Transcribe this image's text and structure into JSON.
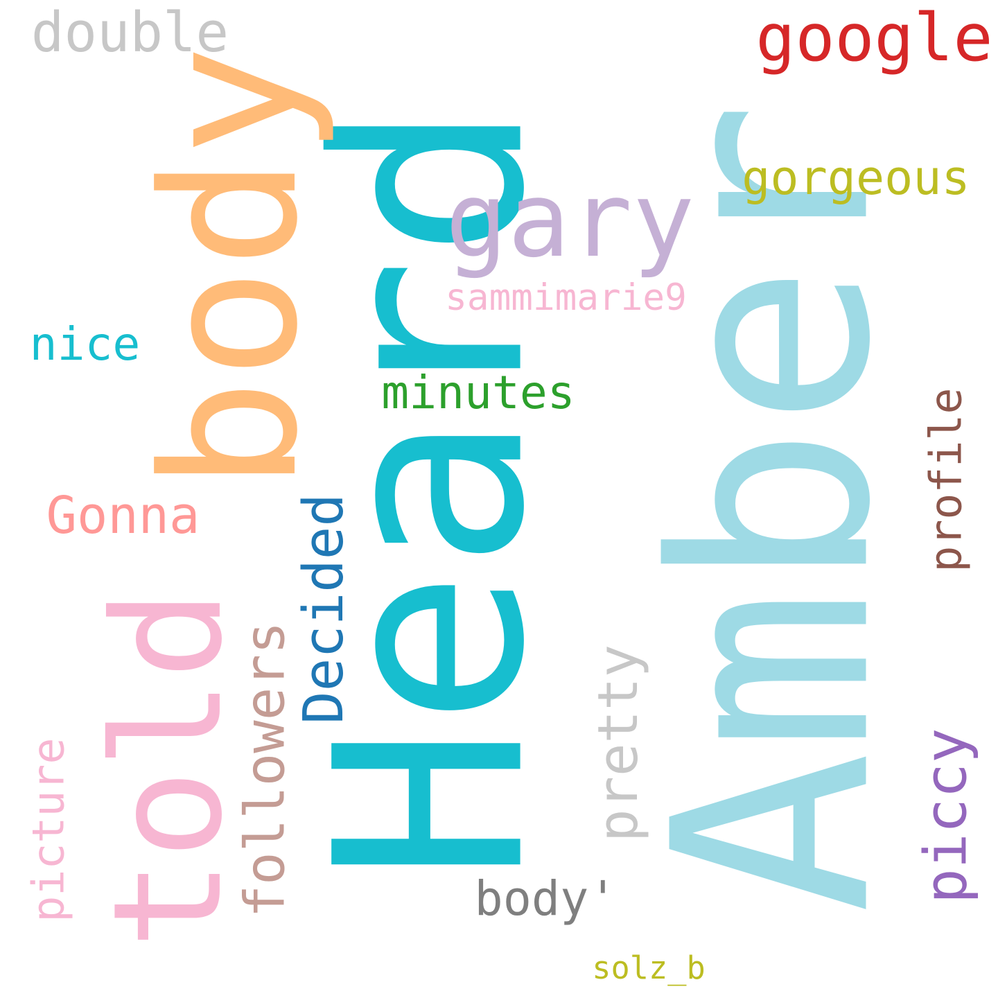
{
  "words": [
    {
      "id": "heard",
      "text": "Heard",
      "color": "#17becf",
      "vertical": true
    },
    {
      "id": "amber",
      "text": "Amber",
      "color": "#9edae5",
      "vertical": true
    },
    {
      "id": "body",
      "text": "body",
      "color": "#ffbb78",
      "vertical": true
    },
    {
      "id": "told",
      "text": "told",
      "color": "#f7b6d2",
      "vertical": true
    },
    {
      "id": "gary",
      "text": "gary",
      "color": "#c5b0d5",
      "vertical": false
    },
    {
      "id": "google",
      "text": "google",
      "color": "#d62728",
      "vertical": false
    },
    {
      "id": "double",
      "text": "double",
      "color": "#c7c7c7",
      "vertical": false
    },
    {
      "id": "gorgeous",
      "text": "gorgeous",
      "color": "#bcbd22",
      "vertical": false
    },
    {
      "id": "sammimarie9",
      "text": "sammimarie9",
      "color": "#f7b6d2",
      "vertical": false
    },
    {
      "id": "nice",
      "text": "nice",
      "color": "#17becf",
      "vertical": false
    },
    {
      "id": "minutes",
      "text": "minutes",
      "color": "#2ca02c",
      "vertical": false
    },
    {
      "id": "profile",
      "text": "profile",
      "color": "#8c564b",
      "vertical": true
    },
    {
      "id": "gonna",
      "text": "Gonna",
      "color": "#ff9896",
      "vertical": false
    },
    {
      "id": "decided",
      "text": "Decided",
      "color": "#1f77b4",
      "vertical": true
    },
    {
      "id": "followers",
      "text": "followers",
      "color": "#c49c94",
      "vertical": true
    },
    {
      "id": "pretty",
      "text": "pretty",
      "color": "#c7c7c7",
      "vertical": true
    },
    {
      "id": "picture",
      "text": "picture",
      "color": "#f7b6d2",
      "vertical": true
    },
    {
      "id": "piccy",
      "text": "piccy",
      "color": "#9467bd",
      "vertical": true
    },
    {
      "id": "body-quote",
      "text": "body'",
      "color": "#7f7f7f",
      "vertical": false
    },
    {
      "id": "solz-b",
      "text": "solz_b",
      "color": "#bcbd22",
      "vertical": false
    }
  ]
}
